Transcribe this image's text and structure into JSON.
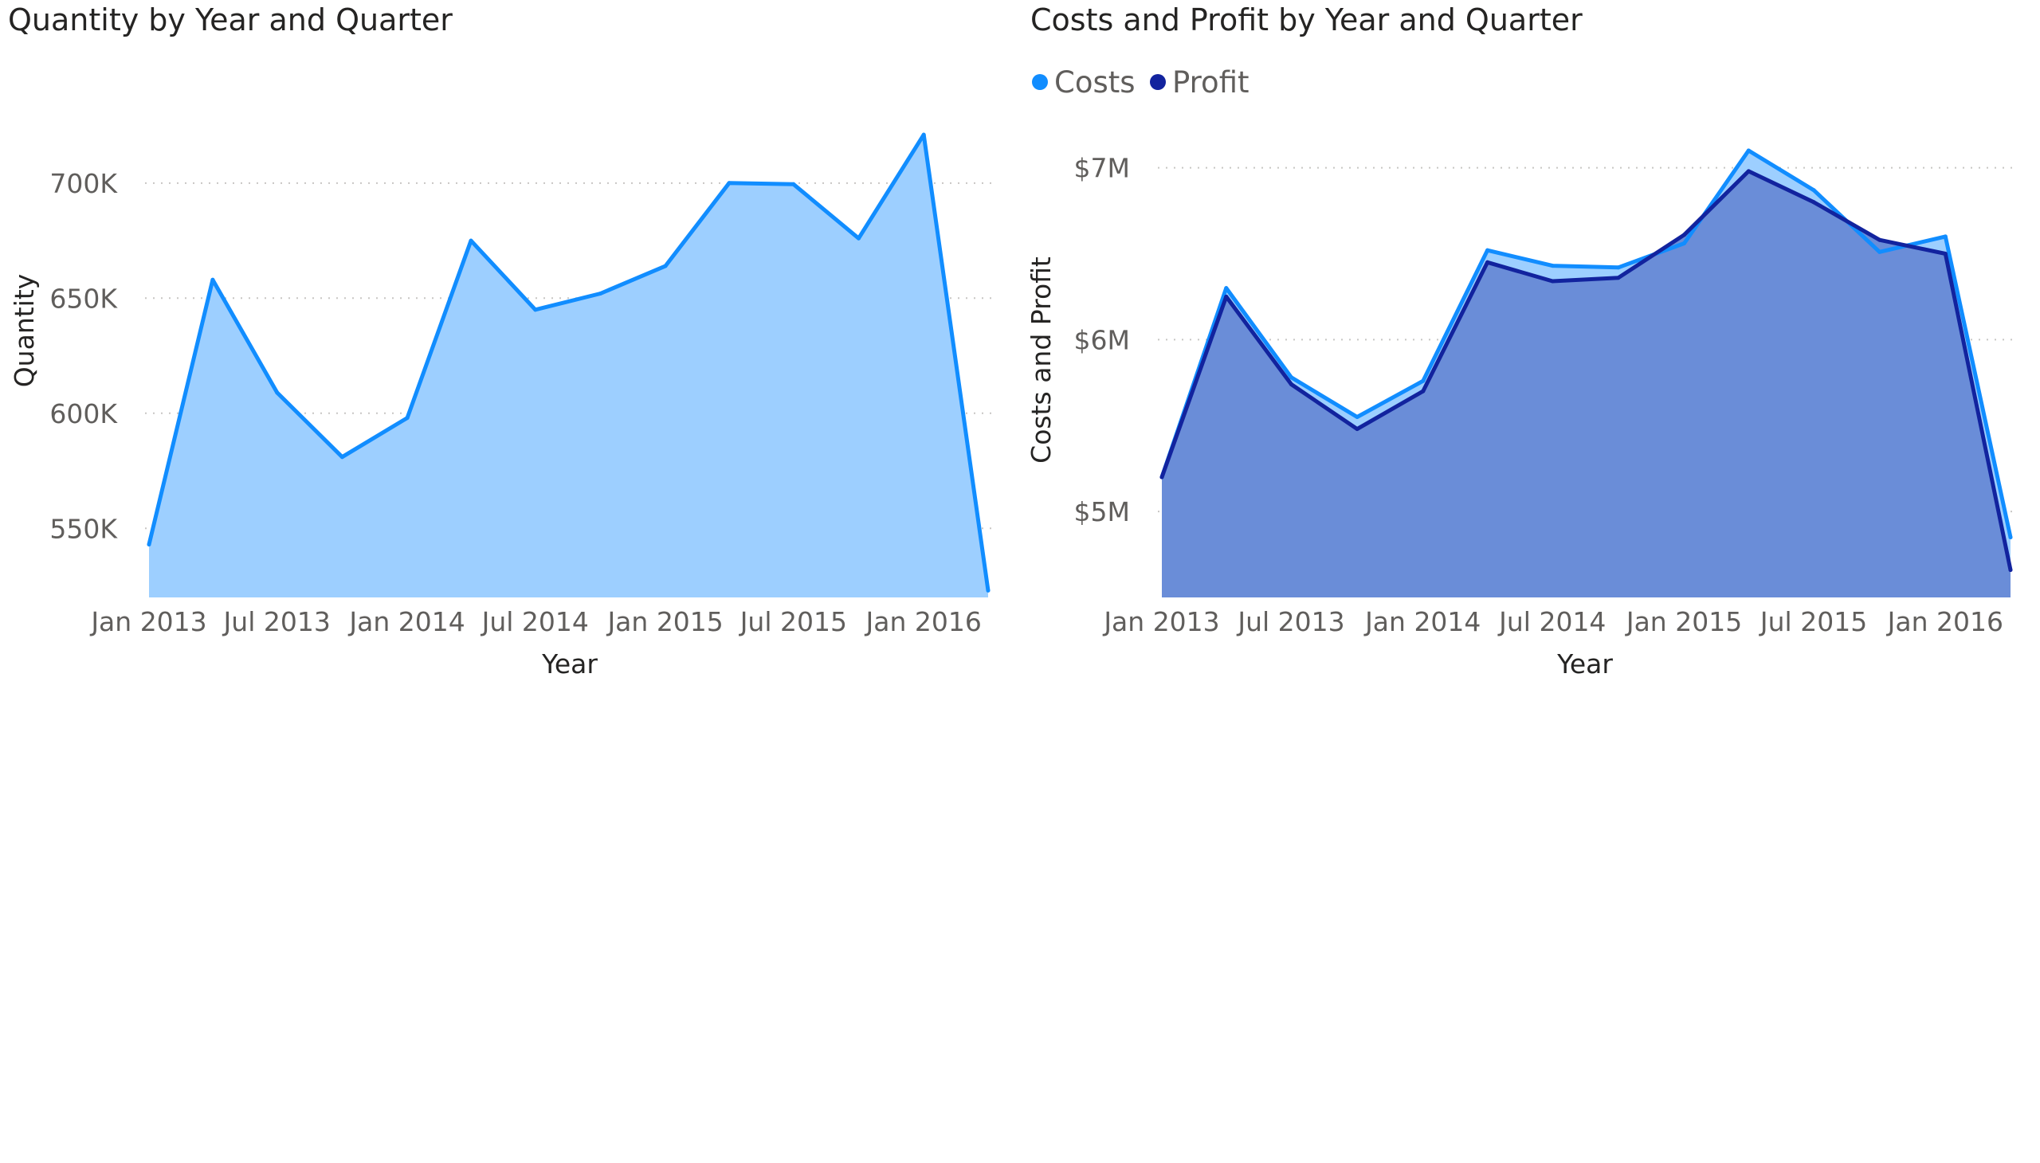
{
  "colors": {
    "quantity_line": "#118DFF",
    "quantity_fill": "#9DCFFF",
    "costs_line": "#118DFF",
    "costs_fill": "#9DCFFF",
    "profit_line": "#12239E",
    "profit_fill": "#6A8DD8",
    "gridline": "#C8C6C4",
    "tick_text": "#605E5C",
    "title_text": "#252423"
  },
  "chart_data": [
    {
      "type": "area",
      "title": "Quantity by Year and Quarter",
      "xlabel": "Year",
      "ylabel": "Quantity",
      "x": [
        "2013-01-01",
        "2013-04-01",
        "2013-07-01",
        "2013-10-01",
        "2014-01-01",
        "2014-04-01",
        "2014-07-01",
        "2014-10-01",
        "2015-01-01",
        "2015-04-01",
        "2015-07-01",
        "2015-10-01",
        "2016-01-01",
        "2016-04-01"
      ],
      "series": [
        {
          "name": "Quantity",
          "values": [
            543000,
            658000,
            609000,
            581000,
            598000,
            675000,
            645000,
            652000,
            664000,
            700000,
            699500,
            676000,
            721000,
            523000
          ]
        }
      ],
      "x_ticks": [
        "Jan 2013",
        "Jul 2013",
        "Jan 2014",
        "Jul 2014",
        "Jan 2015",
        "Jul 2015",
        "Jan 2016"
      ],
      "x_tick_dates": [
        "2013-01-01",
        "2013-07-01",
        "2014-01-01",
        "2014-07-01",
        "2015-01-01",
        "2015-07-01",
        "2016-01-01"
      ],
      "y_ticks": [
        "550K",
        "600K",
        "650K",
        "700K"
      ],
      "y_tick_values": [
        550000,
        600000,
        650000,
        700000
      ],
      "ylim": [
        520000,
        738000
      ],
      "xlim": [
        "2013-01-01",
        "2016-04-01"
      ],
      "grid": true,
      "legend": "none"
    },
    {
      "type": "area",
      "title": "Costs and Profit by Year and Quarter",
      "xlabel": "Year",
      "ylabel": "Costs and Profit",
      "x": [
        "2013-01-01",
        "2013-04-01",
        "2013-07-01",
        "2013-10-01",
        "2014-01-01",
        "2014-04-01",
        "2014-07-01",
        "2014-10-01",
        "2015-01-01",
        "2015-04-01",
        "2015-07-01",
        "2015-10-01",
        "2016-01-01",
        "2016-04-01"
      ],
      "series": [
        {
          "name": "Costs",
          "values": [
            5200000,
            6300000,
            5780000,
            5550000,
            5760000,
            6520000,
            6430000,
            6420000,
            6560000,
            7100000,
            6870000,
            6510000,
            6600000,
            4850000
          ]
        },
        {
          "name": "Profit",
          "values": [
            5200000,
            6250000,
            5740000,
            5480000,
            5700000,
            6450000,
            6340000,
            6360000,
            6610000,
            6980000,
            6800000,
            6580000,
            6500000,
            4660000
          ]
        }
      ],
      "x_ticks": [
        "Jan 2013",
        "Jul 2013",
        "Jan 2014",
        "Jul 2014",
        "Jan 2015",
        "Jul 2015",
        "Jan 2016"
      ],
      "x_tick_dates": [
        "2013-01-01",
        "2013-07-01",
        "2014-01-01",
        "2014-07-01",
        "2015-01-01",
        "2015-07-01",
        "2016-01-01"
      ],
      "y_ticks": [
        "$5M",
        "$6M",
        "$7M"
      ],
      "y_tick_values": [
        5000000,
        6000000,
        7000000
      ],
      "ylim": [
        4500000,
        7420000
      ],
      "xlim": [
        "2013-01-01",
        "2016-04-01"
      ],
      "grid": true,
      "legend": "top-left"
    }
  ]
}
